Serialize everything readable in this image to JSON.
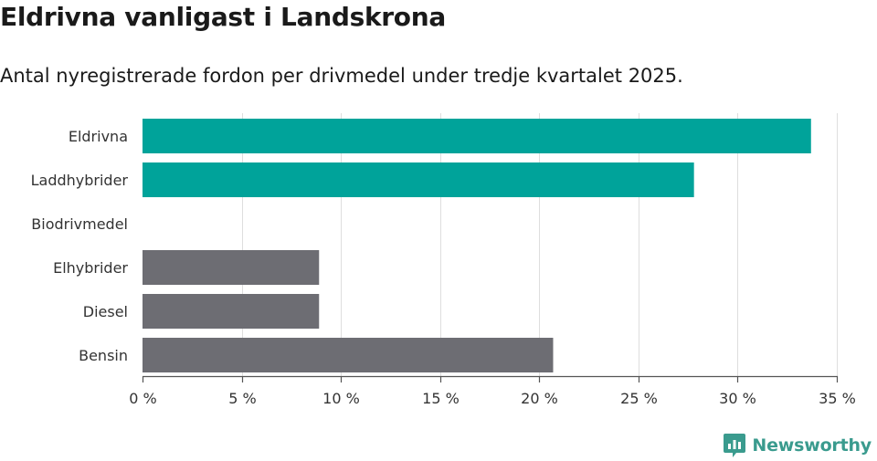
{
  "header": {
    "title": "Eldrivna vanligast i Landskrona",
    "subtitle": "Antal nyregistrerade fordon per drivmedel under tredje kvartalet 2025."
  },
  "brand": {
    "name": "Newsworthy",
    "color": "#3a9b8e"
  },
  "chart_data": {
    "type": "bar",
    "orientation": "horizontal",
    "title": "Eldrivna vanligast i Landskrona",
    "subtitle": "Antal nyregistrerade fordon per drivmedel under tredje kvartalet 2025.",
    "categories": [
      "Eldrivna",
      "Laddhybrider",
      "Biodrivmedel",
      "Elhybrider",
      "Diesel",
      "Bensin"
    ],
    "values": [
      33.7,
      27.8,
      0,
      8.9,
      8.9,
      20.7
    ],
    "colors": [
      "#00a39a",
      "#00a39a",
      "#00a39a",
      "#6d6d73",
      "#6d6d73",
      "#6d6d73"
    ],
    "unit": "%",
    "xlim": [
      0,
      35
    ],
    "xticks": [
      0,
      5,
      10,
      15,
      20,
      25,
      30,
      35
    ],
    "xtick_labels": [
      "0 %",
      "5 %",
      "10 %",
      "15 %",
      "20 %",
      "25 %",
      "30 %",
      "35 %"
    ],
    "grid": true,
    "xlabel": "",
    "ylabel": ""
  }
}
